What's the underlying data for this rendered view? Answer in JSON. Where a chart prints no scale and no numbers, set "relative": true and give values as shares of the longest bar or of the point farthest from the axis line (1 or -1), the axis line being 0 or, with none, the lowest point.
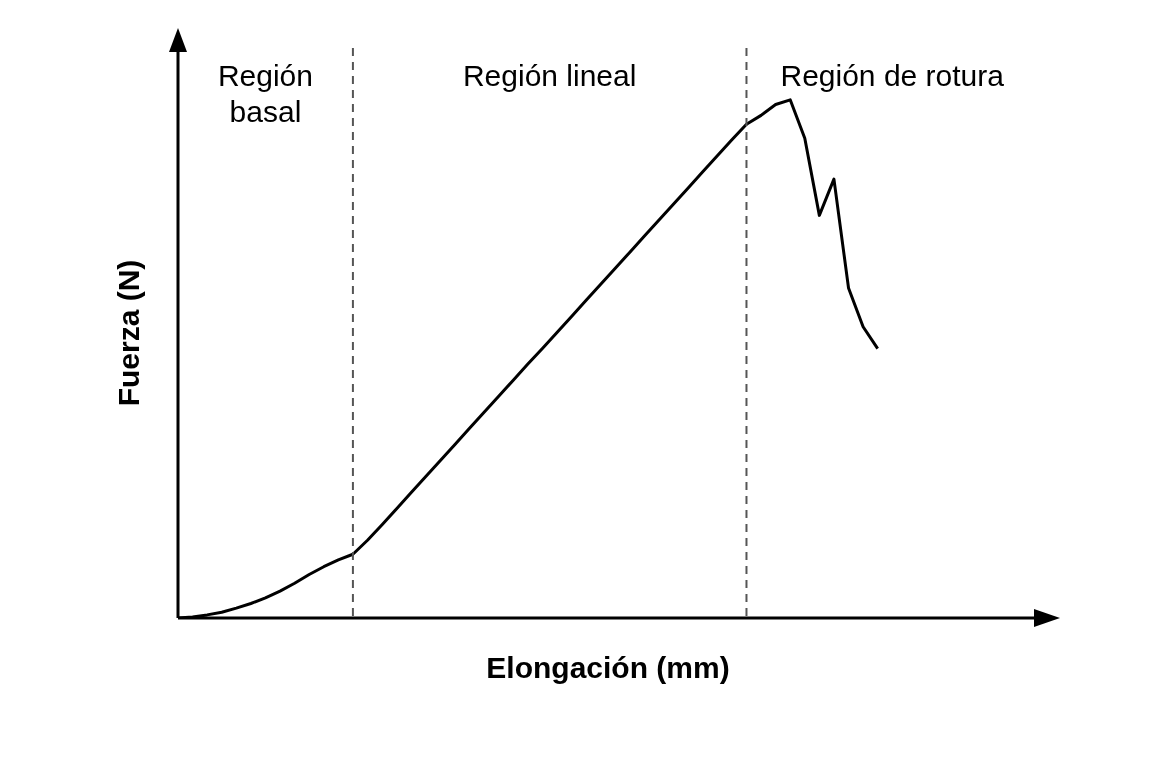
{
  "chart_data": {
    "type": "line",
    "relative": true,
    "xlabel": "Elongación (mm)",
    "ylabel": "Fuerza (N)",
    "categories": [
      null,
      null,
      null,
      null,
      null,
      null,
      null,
      null,
      null,
      null,
      null,
      null,
      null,
      null,
      null,
      null,
      null,
      null,
      null,
      null,
      null,
      null,
      null,
      null,
      null,
      null,
      null,
      null,
      null,
      null,
      null,
      null,
      null,
      null,
      null,
      null,
      null,
      null,
      null,
      null,
      null,
      null,
      null,
      null,
      null,
      null,
      null,
      null,
      null,
      null,
      null,
      null,
      null,
      null,
      null,
      null,
      null,
      null,
      null,
      null
    ],
    "series": [
      {
        "color": "#000000",
        "values": [
          0,
          0.002,
          0.006,
          0.011,
          0.019,
          0.028,
          0.039,
          0.052,
          0.067,
          0.084,
          0.099,
          0.112,
          0.123,
          0.15,
          0.18,
          0.211,
          0.242,
          0.273,
          0.304,
          0.335,
          0.366,
          0.397,
          0.428,
          0.459,
          0.49,
          0.52,
          0.551,
          0.582,
          0.613,
          0.644,
          0.675,
          0.706,
          0.737,
          0.768,
          0.799,
          0.83,
          0.861,
          0.892,
          0.923,
          0.953,
          0.97,
          0.991,
          1,
          0.926,
          0.777,
          0.847,
          0.637,
          0.562,
          0.52,
          null,
          null,
          null,
          null,
          null,
          null,
          null,
          null,
          null,
          null,
          null
        ]
      }
    ],
    "annotations": [
      "Región basal",
      "Región lineal",
      "Región de rotura"
    ],
    "grid": false,
    "legend": false,
    "marker": "none",
    "line_style": "solid"
  }
}
